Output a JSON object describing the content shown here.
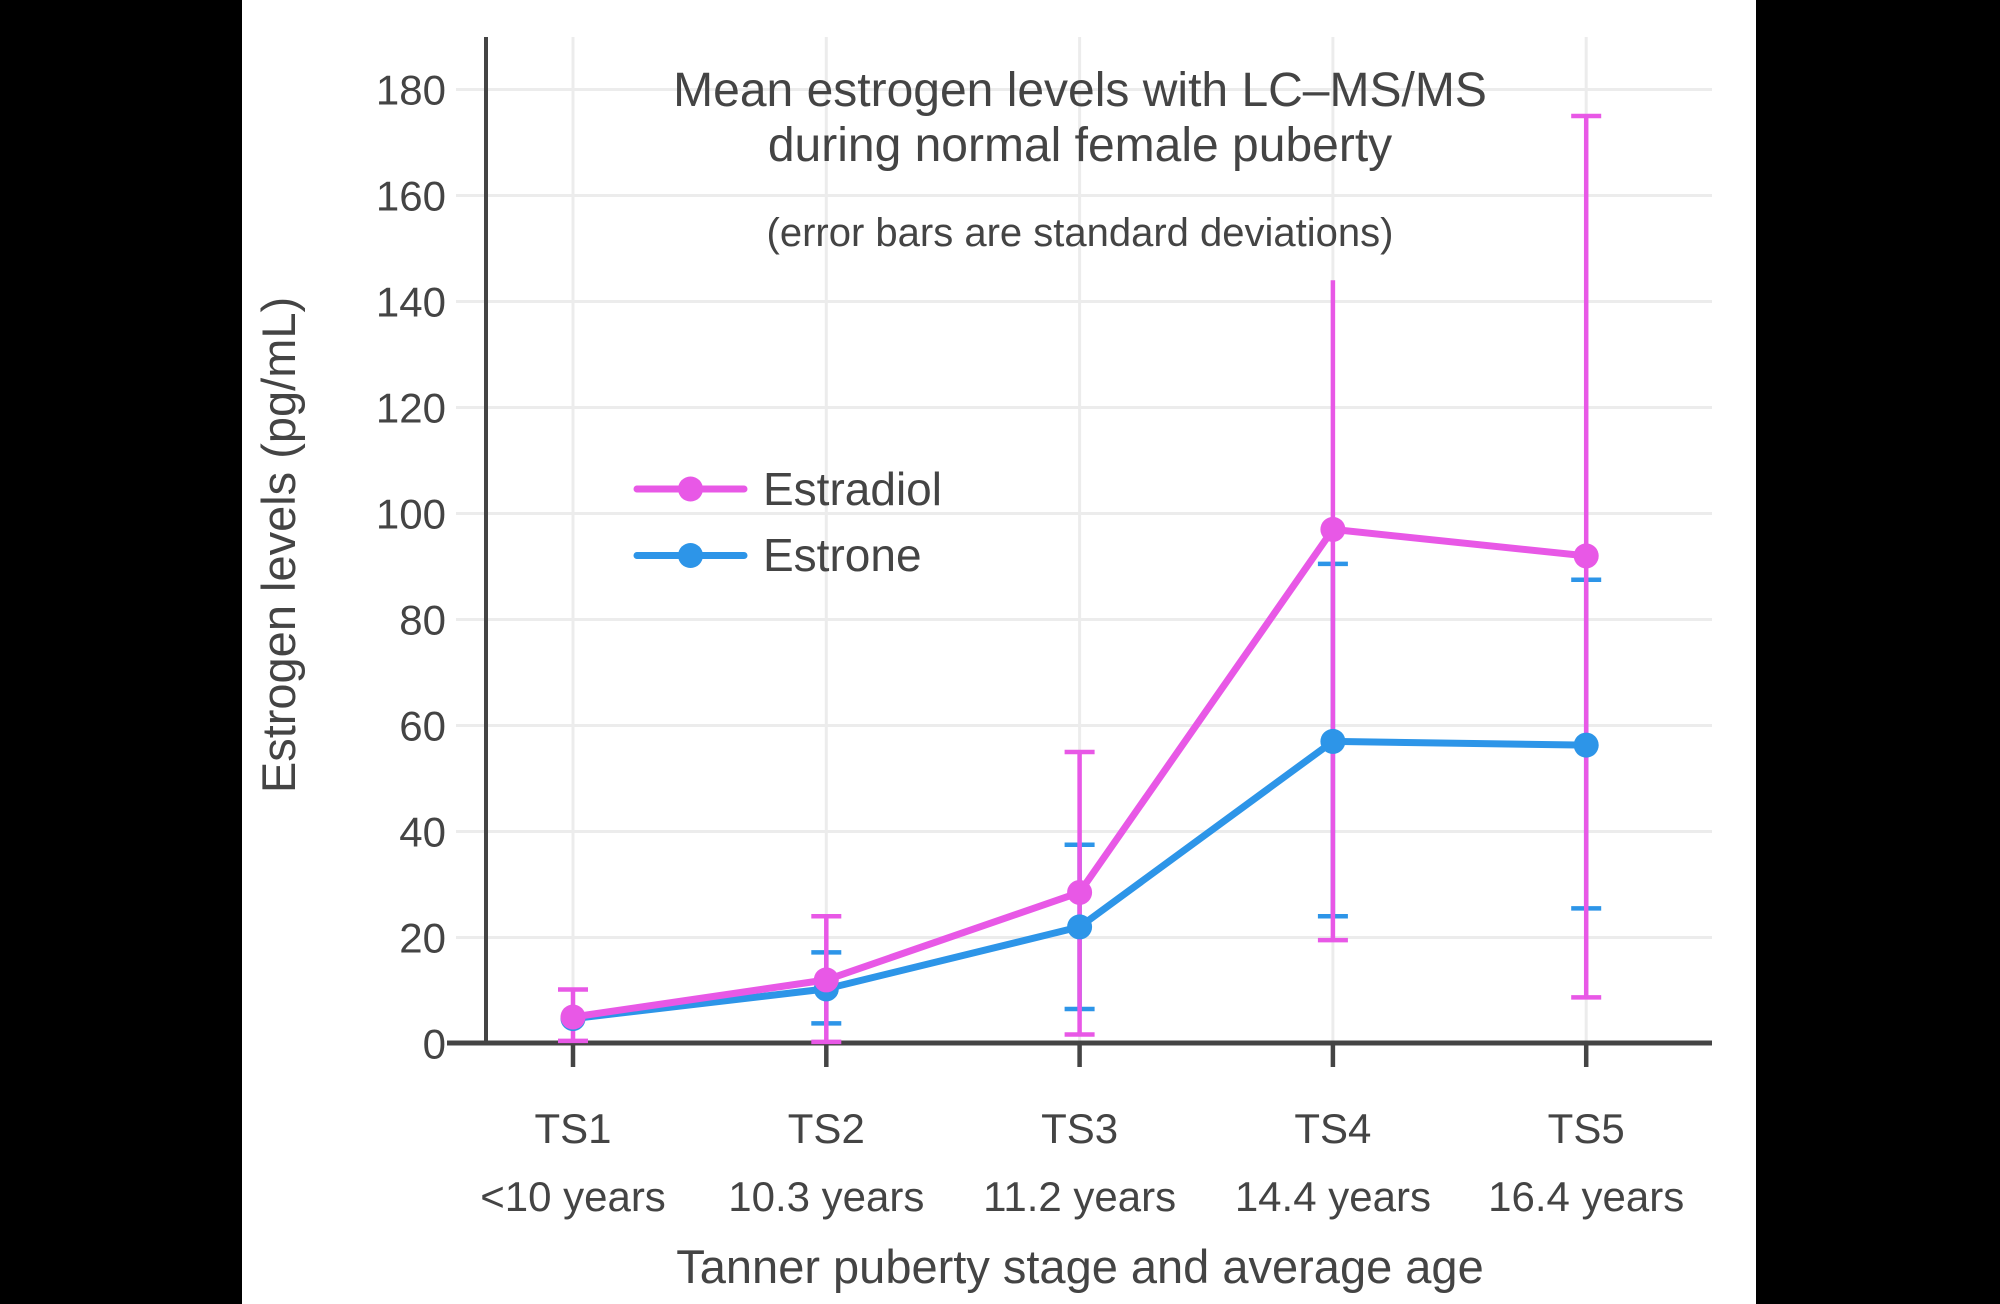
{
  "figure": {
    "letterbox_color": "#000000",
    "canvas_color": "#FFFFFF",
    "text_color": "#444444",
    "grid_color": "#ECECEC",
    "axis_color": "#444444"
  },
  "chart_data": {
    "type": "line",
    "title_lines": [
      "Mean estrogen levels with LC–MS/MS",
      "during normal female puberty"
    ],
    "subtitle": "(error bars are standard deviations)",
    "xlabel": "Tanner puberty stage and average age",
    "ylabel": "Estrogen levels (pg/mL)",
    "categories": [
      "TS1",
      "TS2",
      "TS3",
      "TS4",
      "TS5"
    ],
    "category_ages": [
      "<10 years",
      "10.3 years",
      "11.2 years",
      "14.4 years",
      "16.4 years"
    ],
    "y_ticks": [
      0,
      20,
      40,
      60,
      80,
      100,
      120,
      140,
      160,
      180
    ],
    "ylim": [
      0,
      190
    ],
    "grid": true,
    "legend": {
      "position": "inside-upper-left",
      "entries": [
        {
          "label": "Estradiol",
          "color": "#E858E6"
        },
        {
          "label": "Estrone",
          "color": "#2D95E8"
        }
      ]
    },
    "series": [
      {
        "name": "Estrone",
        "color": "#2D95E8",
        "values": [
          4.7,
          10.3,
          22,
          57,
          56.3
        ],
        "error_low": [
          null,
          3.8,
          6.5,
          24,
          25.5
        ],
        "error_high": [
          null,
          17.2,
          37.5,
          90.5,
          87.5
        ],
        "no_top_cap_indices": []
      },
      {
        "name": "Estradiol",
        "color": "#E858E6",
        "values": [
          5,
          12,
          28.5,
          97,
          92
        ],
        "error_low": [
          0.5,
          0.3,
          1.7,
          19.5,
          8.7
        ],
        "error_high": [
          10.2,
          24,
          55,
          144,
          175
        ],
        "no_top_cap_indices": [
          3
        ]
      }
    ]
  }
}
